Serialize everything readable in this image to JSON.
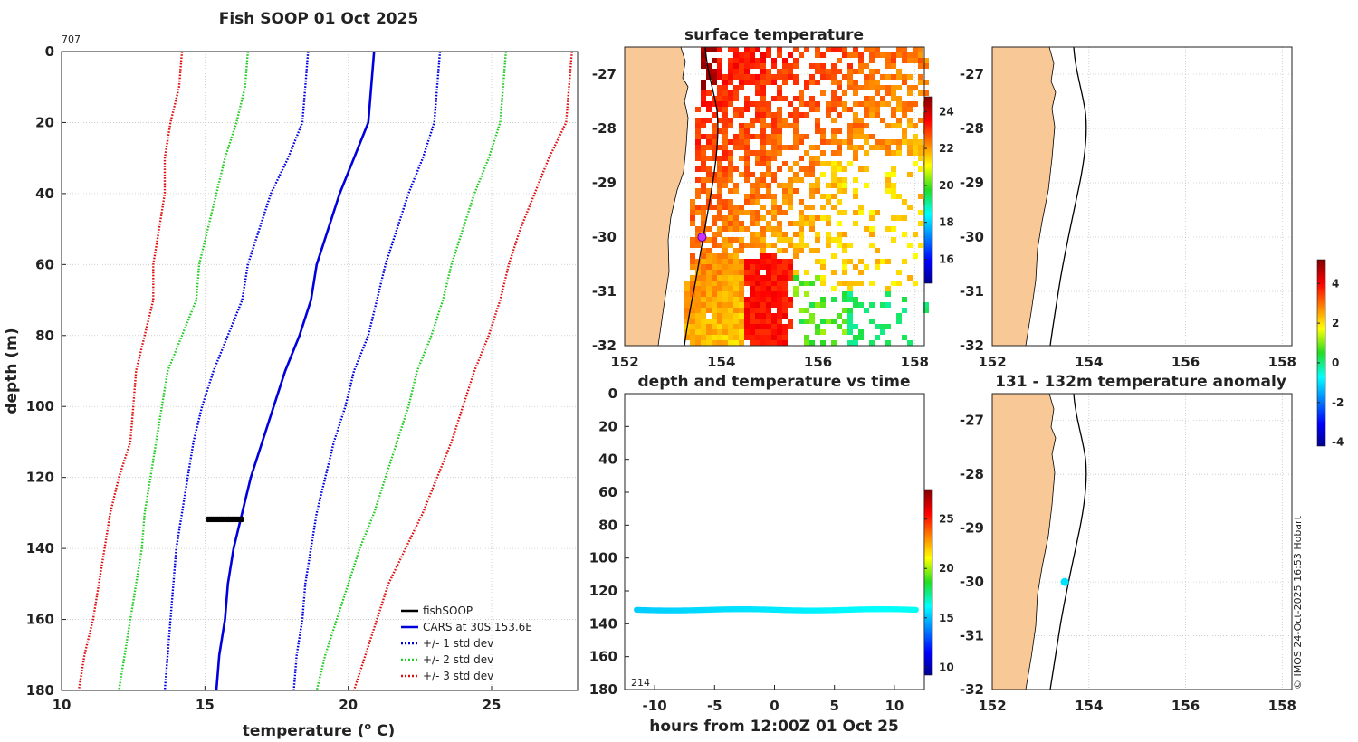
{
  "page_title": "Fish SOOP 01 Oct 2025",
  "profile_count": "707",
  "time_count": "214",
  "credit": "© IMOS 24-Oct-2025 16:53 Hobart",
  "colors": {
    "fishsoop": "#000000",
    "cars": "#0000dd",
    "std1": "#0000dd",
    "std2": "#22cc22",
    "std3": "#dd1111",
    "land": "#f8c896"
  },
  "chart_data": [
    {
      "id": "profile",
      "type": "line",
      "title": "Fish SOOP 01 Oct 2025",
      "xlabel": "temperature (",
      "xlabel_sup": "o",
      "xlabel_tail": " C)",
      "ylabel": "depth (m)",
      "xlim": [
        10,
        28
      ],
      "ylim": [
        0,
        180
      ],
      "y_inverted": true,
      "xticks": [
        "10",
        "15",
        "20",
        "25"
      ],
      "yticks": [
        "0",
        "20",
        "40",
        "60",
        "80",
        "100",
        "120",
        "140",
        "160",
        "180"
      ],
      "grid": true,
      "legend": [
        "fishSOOP",
        "CARS at 30S 153.6E",
        "+/- 1 std dev",
        "+/- 2 std dev",
        "+/- 3 std dev"
      ],
      "legend_position": "bottom-right",
      "depths": [
        0,
        10,
        20,
        30,
        40,
        50,
        60,
        70,
        80,
        90,
        100,
        110,
        120,
        130,
        140,
        150,
        160,
        170,
        180
      ],
      "series": [
        {
          "name": "CARS at 30S 153.6E",
          "style": "solid",
          "values": [
            20.9,
            20.8,
            20.7,
            20.2,
            19.7,
            19.3,
            18.9,
            18.7,
            18.3,
            17.8,
            17.4,
            17.0,
            16.6,
            16.3,
            16.0,
            15.8,
            15.7,
            15.5,
            15.4
          ]
        },
        {
          "name": "+1 std dev",
          "style": "dotted",
          "values": [
            23.2,
            23.1,
            23.0,
            22.6,
            22.1,
            21.7,
            21.3,
            21.0,
            20.7,
            20.2,
            19.9,
            19.5,
            19.2,
            18.9,
            18.7,
            18.5,
            18.4,
            18.2,
            18.1
          ]
        },
        {
          "name": "-1 std dev",
          "style": "dotted",
          "values": [
            18.6,
            18.5,
            18.4,
            17.9,
            17.3,
            16.9,
            16.5,
            16.3,
            15.8,
            15.3,
            14.9,
            14.6,
            14.4,
            14.2,
            14.0,
            13.9,
            13.8,
            13.7,
            13.6
          ]
        },
        {
          "name": "+2 std dev",
          "style": "dotted",
          "values": [
            25.5,
            25.4,
            25.3,
            24.9,
            24.4,
            24.0,
            23.6,
            23.3,
            22.9,
            22.4,
            22.1,
            21.7,
            21.3,
            20.9,
            20.4,
            20.0,
            19.6,
            19.2,
            18.9
          ]
        },
        {
          "name": "-2 std dev",
          "style": "dotted",
          "values": [
            16.5,
            16.4,
            16.1,
            15.7,
            15.4,
            15.1,
            14.8,
            14.7,
            14.2,
            13.7,
            13.5,
            13.3,
            13.1,
            12.9,
            12.8,
            12.6,
            12.4,
            12.2,
            12.0
          ]
        },
        {
          "name": "+3 std dev",
          "style": "dotted",
          "values": [
            27.8,
            27.7,
            27.6,
            27.0,
            26.5,
            26.0,
            25.6,
            25.3,
            24.9,
            24.4,
            24.0,
            23.6,
            23.1,
            22.6,
            22.0,
            21.4,
            21.0,
            20.6,
            20.2
          ]
        },
        {
          "name": "-3 std dev",
          "style": "dotted",
          "values": [
            14.2,
            14.1,
            13.8,
            13.6,
            13.6,
            13.4,
            13.2,
            13.2,
            12.9,
            12.6,
            12.5,
            12.4,
            12.0,
            11.7,
            11.5,
            11.3,
            11.1,
            10.8,
            10.6
          ]
        }
      ],
      "fishsoop_points": {
        "depths": [
          131.4,
          131.6,
          131.8,
          132.0,
          132.2
        ],
        "tmin": 15.1,
        "tmax": 16.3
      }
    },
    {
      "id": "sst",
      "type": "heatmap",
      "title": "surface temperature",
      "xlim": [
        152,
        158.2
      ],
      "ylim": [
        -32,
        -26.5
      ],
      "xticks": [
        "152",
        "154",
        "156",
        "158"
      ],
      "yticks": [
        "-27",
        "-28",
        "-29",
        "-30",
        "-31",
        "-32"
      ],
      "colorbar_ticks": [
        "16",
        "18",
        "20",
        "22",
        "24"
      ],
      "clim": [
        14.7,
        24.8
      ],
      "marker": {
        "lon": 153.6,
        "lat": -30.0
      }
    },
    {
      "id": "depthtime",
      "type": "scatter",
      "title": "depth and temperature vs time",
      "xlabel": "hours from 12:00Z 01 Oct 25",
      "xlim": [
        -12.5,
        12.5
      ],
      "ylim": [
        0,
        180
      ],
      "y_inverted": true,
      "xticks": [
        "-10",
        "-5",
        "0",
        "5",
        "10"
      ],
      "yticks": [
        "0",
        "20",
        "40",
        "60",
        "80",
        "100",
        "120",
        "140",
        "160",
        "180"
      ],
      "colorbar_ticks": [
        "10",
        "15",
        "20",
        "25"
      ],
      "clim": [
        9.2,
        28
      ],
      "depth_range": [
        131,
        132
      ],
      "time_range": [
        -11.5,
        11.8
      ],
      "temperature_range": [
        15.2,
        16.3
      ]
    },
    {
      "id": "blankmap",
      "type": "map",
      "xlim": [
        152,
        158.2
      ],
      "ylim": [
        -32,
        -26.5
      ],
      "xticks": [
        "152",
        "154",
        "156",
        "158"
      ],
      "yticks": [
        "-27",
        "-28",
        "-29",
        "-30",
        "-31",
        "-32"
      ],
      "colorbar_ticks": [
        "-4",
        "-2",
        "0",
        "2",
        "4"
      ],
      "clim": [
        -4.2,
        5.2
      ]
    },
    {
      "id": "anomaly",
      "type": "scatter",
      "title": "131 - 132m temperature anomaly",
      "xlim": [
        152,
        158.2
      ],
      "ylim": [
        -32,
        -26.5
      ],
      "xticks": [
        "152",
        "154",
        "156",
        "158"
      ],
      "yticks": [
        "-27",
        "-28",
        "-29",
        "-30",
        "-31",
        "-32"
      ],
      "points": [
        {
          "lon": 153.5,
          "lat": -30.0,
          "anomaly": -1.0
        }
      ]
    }
  ]
}
